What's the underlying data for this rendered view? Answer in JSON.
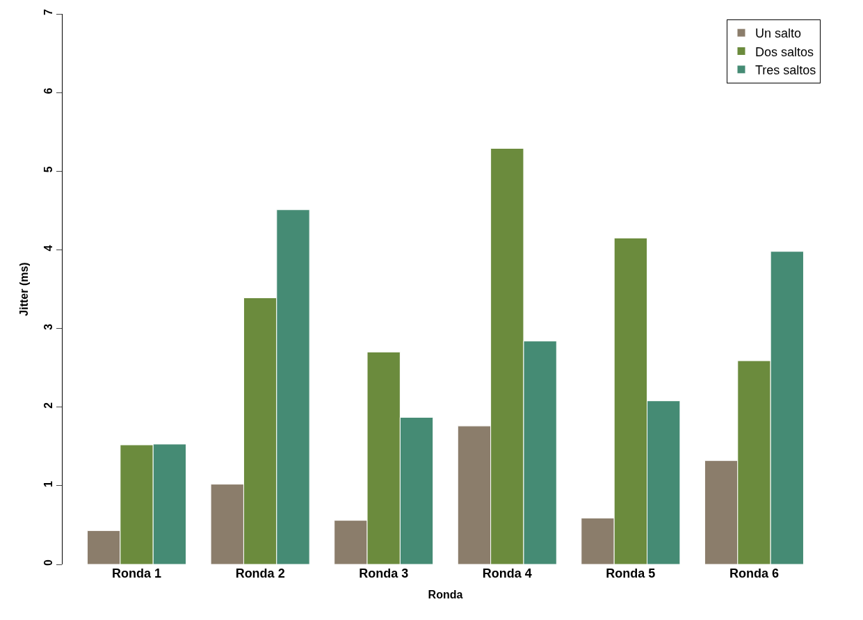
{
  "chart_data": {
    "type": "bar",
    "xlabel": "Ronda",
    "ylabel": "Jitter (ms)",
    "categories": [
      "Ronda 1",
      "Ronda 2",
      "Ronda 3",
      "Ronda 4",
      "Ronda 5",
      "Ronda 6"
    ],
    "series": [
      {
        "name": "Un salto",
        "color": "#8b7d6b",
        "values": [
          0.43,
          1.02,
          0.56,
          1.76,
          0.59,
          1.32
        ]
      },
      {
        "name": "Dos saltos",
        "color": "#6b8b3d",
        "values": [
          1.52,
          3.39,
          2.7,
          5.29,
          4.15,
          2.59
        ]
      },
      {
        "name": "Tres saltos",
        "color": "#458b74",
        "values": [
          1.53,
          4.51,
          1.87,
          2.84,
          2.08,
          3.98
        ]
      }
    ],
    "ylim": [
      0,
      7
    ],
    "yticks": [
      0,
      1,
      2,
      3,
      4,
      5,
      6,
      7
    ],
    "legend": "top right"
  }
}
